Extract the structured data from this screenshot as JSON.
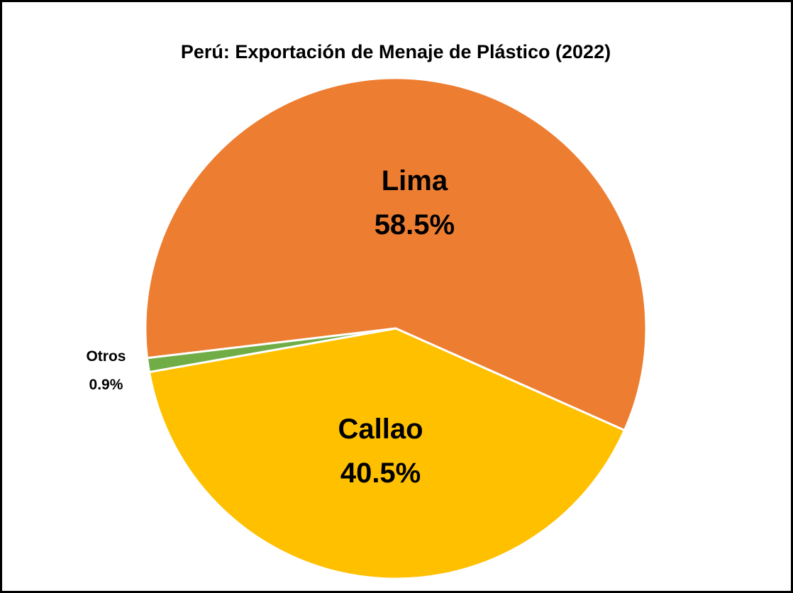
{
  "chart_data": {
    "type": "pie",
    "title": "Perú: Exportación de Menaje de Plástico (2022)",
    "categories": [
      "Lima",
      "Callao",
      "Otros"
    ],
    "values": [
      58.5,
      40.5,
      0.9
    ],
    "value_labels": [
      "58.5%",
      "40.5%",
      "0.9%"
    ],
    "colors": [
      "#ED7D31",
      "#FFC000",
      "#70AD47"
    ]
  }
}
